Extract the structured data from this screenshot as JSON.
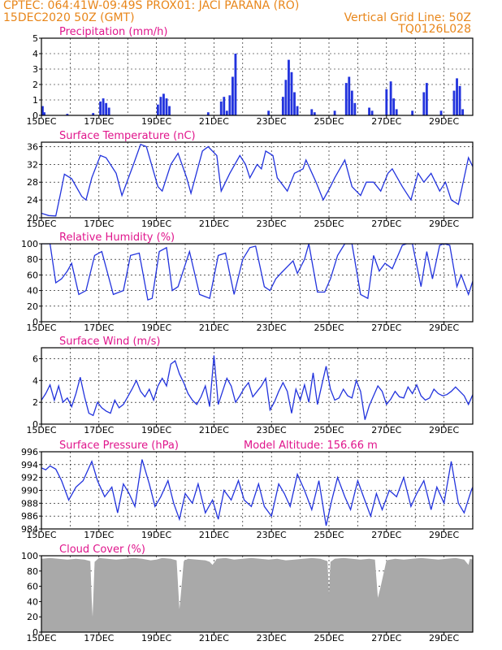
{
  "header": {
    "line1_left": "CPTEC:   064:41W-09:49S   PROX01: JACI PARANA (RO)",
    "line2_left": "15DEC2020 50Z (GMT)",
    "line2_right": "Vertical Grid Line: 50Z",
    "line3_right": "TQ0126L028"
  },
  "colors": {
    "header": "#e8861a",
    "title": "#e0158c",
    "series": "#2233dd",
    "cloud": "#a9a9a9",
    "grid": "#000000"
  },
  "chart_data": [
    {
      "id": "precip",
      "type": "bar",
      "title": "Precipitation (mm/h)",
      "ylim": [
        0,
        5
      ],
      "yticks": [
        0,
        1,
        2,
        3,
        4,
        5
      ],
      "xlim": [
        15,
        30
      ],
      "xticks": [
        "15DEC",
        "17DEC",
        "19DEC",
        "21DEC",
        "23DEC",
        "25DEC",
        "27DEC",
        "29DEC"
      ],
      "x": [
        15.04,
        15.1,
        15.9,
        16.8,
        17.05,
        17.15,
        17.25,
        17.35,
        19.05,
        19.15,
        19.25,
        19.35,
        19.45,
        20.8,
        21.25,
        21.35,
        21.45,
        21.55,
        21.65,
        21.75,
        22.9,
        23.4,
        23.5,
        23.6,
        23.7,
        23.8,
        23.9,
        24.4,
        24.5,
        25.2,
        25.6,
        25.7,
        25.8,
        25.9,
        26.4,
        26.5,
        27.0,
        27.15,
        27.25,
        27.35,
        27.9,
        28.3,
        28.4,
        28.9,
        29.35,
        29.45,
        29.55,
        29.65
      ],
      "values": [
        0.6,
        0.2,
        0.1,
        0.15,
        0.9,
        1.1,
        0.8,
        0.5,
        0.7,
        1.2,
        1.4,
        1.1,
        0.6,
        0.2,
        0.9,
        1.2,
        0.3,
        1.3,
        2.5,
        4.0,
        0.3,
        1.2,
        2.3,
        3.6,
        2.8,
        1.5,
        0.6,
        0.4,
        0.2,
        0.3,
        2.1,
        2.5,
        1.6,
        0.8,
        0.5,
        0.3,
        1.7,
        2.2,
        1.1,
        0.4,
        0.3,
        1.5,
        2.1,
        0.3,
        1.6,
        2.4,
        1.9,
        0.4
      ]
    },
    {
      "id": "temp",
      "type": "line",
      "title": "Surface Temperature (nC)",
      "ylim": [
        20,
        37
      ],
      "yticks": [
        20,
        24,
        28,
        32,
        36
      ],
      "xlim": [
        15,
        30
      ],
      "xticks": [
        "15DEC",
        "17DEC",
        "19DEC",
        "21DEC",
        "23DEC",
        "25DEC",
        "27DEC",
        "29DEC"
      ],
      "x": [
        15,
        15.25,
        15.5,
        15.65,
        15.8,
        16.05,
        16.4,
        16.55,
        16.75,
        17.05,
        17.25,
        17.6,
        17.8,
        18.2,
        18.45,
        18.65,
        19.05,
        19.2,
        19.5,
        19.75,
        20.05,
        20.2,
        20.6,
        20.8,
        21.1,
        21.25,
        21.55,
        21.9,
        22.1,
        22.25,
        22.5,
        22.65,
        22.8,
        23.05,
        23.2,
        23.55,
        23.8,
        24.1,
        24.2,
        24.55,
        24.8,
        25.05,
        25.2,
        25.55,
        25.8,
        26.1,
        26.3,
        26.55,
        26.8,
        27.05,
        27.2,
        27.55,
        27.85,
        28.1,
        28.3,
        28.55,
        28.85,
        29.05,
        29.25,
        29.5,
        29.85,
        30
      ],
      "values": [
        21,
        20.5,
        20.4,
        25,
        29.8,
        28.8,
        24.8,
        24,
        29,
        34,
        33.5,
        30,
        25,
        32,
        36.5,
        36,
        27,
        26,
        32,
        34.5,
        29,
        25.5,
        35,
        36,
        34,
        26,
        30,
        34,
        32,
        29,
        32,
        31,
        35,
        34,
        29,
        26,
        30,
        31,
        33,
        28,
        24,
        27,
        29,
        33,
        27,
        25,
        28,
        28,
        26,
        30,
        31,
        27,
        24,
        30,
        28,
        30,
        26,
        28,
        24,
        23,
        33.5,
        31.5
      ]
    },
    {
      "id": "rh",
      "type": "line",
      "title": "Relative Humidity (%)",
      "ylim": [
        0,
        100
      ],
      "yticks": [
        0,
        20,
        40,
        60,
        80,
        100
      ],
      "xlim": [
        15,
        30
      ],
      "xticks": [
        "15DEC",
        "17DEC",
        "19DEC",
        "21DEC",
        "23DEC",
        "25DEC",
        "27DEC",
        "29DEC"
      ],
      "x": [
        15,
        15.3,
        15.5,
        15.7,
        15.9,
        16.05,
        16.3,
        16.55,
        16.85,
        17.1,
        17.5,
        17.85,
        18.1,
        18.4,
        18.7,
        18.85,
        19.1,
        19.35,
        19.55,
        19.75,
        20.15,
        20.5,
        20.85,
        21.15,
        21.4,
        21.7,
        22.0,
        22.25,
        22.45,
        22.75,
        22.95,
        23.15,
        23.35,
        23.75,
        23.9,
        24.15,
        24.3,
        24.6,
        24.85,
        25.05,
        25.3,
        25.55,
        25.8,
        26.1,
        26.35,
        26.55,
        26.75,
        26.95,
        27.2,
        27.55,
        27.7,
        27.9,
        28.2,
        28.4,
        28.6,
        28.85,
        29.0,
        29.2,
        29.45,
        29.6,
        29.85,
        30
      ],
      "values": [
        100,
        100,
        50,
        55,
        65,
        75,
        35,
        40,
        85,
        90,
        35,
        40,
        85,
        88,
        28,
        30,
        90,
        95,
        40,
        45,
        90,
        35,
        30,
        85,
        88,
        35,
        80,
        95,
        97,
        45,
        40,
        55,
        63,
        78,
        62,
        80,
        100,
        38,
        38,
        55,
        85,
        100,
        100,
        35,
        30,
        85,
        65,
        75,
        68,
        98,
        100,
        100,
        45,
        90,
        55,
        98,
        100,
        98,
        45,
        60,
        35,
        52
      ]
    },
    {
      "id": "wind",
      "type": "line",
      "title": "Surface Wind (m/s)",
      "ylim": [
        0,
        7
      ],
      "yticks": [
        0,
        2,
        4,
        6
      ],
      "xlim": [
        15,
        30
      ],
      "xticks": [
        "15DEC",
        "17DEC",
        "19DEC",
        "21DEC",
        "23DEC",
        "25DEC",
        "27DEC",
        "29DEC"
      ],
      "x": [
        15,
        15.15,
        15.3,
        15.45,
        15.6,
        15.75,
        15.9,
        16.05,
        16.2,
        16.35,
        16.5,
        16.65,
        16.8,
        16.95,
        17.1,
        17.25,
        17.4,
        17.55,
        17.7,
        17.85,
        18.0,
        18.15,
        18.3,
        18.45,
        18.6,
        18.75,
        18.9,
        19.05,
        19.2,
        19.35,
        19.5,
        19.65,
        19.8,
        19.95,
        20.1,
        20.25,
        20.4,
        20.55,
        20.7,
        20.85,
        21.0,
        21.15,
        21.3,
        21.45,
        21.6,
        21.75,
        21.9,
        22.05,
        22.2,
        22.35,
        22.5,
        22.65,
        22.8,
        22.95,
        23.1,
        23.25,
        23.4,
        23.55,
        23.7,
        23.85,
        24.0,
        24.15,
        24.3,
        24.45,
        24.6,
        24.75,
        24.9,
        25.05,
        25.2,
        25.35,
        25.5,
        25.65,
        25.8,
        25.95,
        26.1,
        26.25,
        26.4,
        26.55,
        26.7,
        26.85,
        27.0,
        27.15,
        27.3,
        27.45,
        27.6,
        27.75,
        27.9,
        28.05,
        28.2,
        28.35,
        28.5,
        28.65,
        28.8,
        28.95,
        29.1,
        29.25,
        29.4,
        29.55,
        29.7,
        29.85,
        30
      ],
      "values": [
        2.2,
        2.8,
        3.6,
        2.2,
        3.5,
        2.0,
        2.4,
        1.6,
        2.8,
        4.3,
        2.5,
        1.0,
        0.8,
        2.0,
        1.5,
        1.2,
        1.0,
        2.2,
        1.5,
        1.8,
        2.5,
        3.2,
        4.0,
        3.0,
        2.5,
        3.2,
        2.2,
        3.5,
        4.2,
        3.5,
        5.5,
        5.8,
        4.6,
        3.8,
        2.8,
        2.2,
        1.8,
        2.5,
        3.5,
        1.6,
        6.3,
        1.8,
        3.0,
        4.2,
        3.5,
        2.0,
        2.6,
        3.3,
        3.8,
        2.5,
        3.0,
        3.5,
        4.2,
        1.3,
        2.0,
        3.0,
        3.8,
        3.0,
        1.0,
        3.2,
        2.2,
        3.6,
        2.0,
        4.7,
        1.8,
        3.6,
        5.3,
        3.2,
        2.2,
        2.4,
        3.2,
        2.6,
        2.4,
        4.0,
        3.0,
        0.4,
        1.7,
        2.6,
        3.5,
        3.0,
        1.8,
        2.3,
        3.0,
        2.5,
        2.4,
        3.4,
        2.8,
        3.6,
        2.6,
        2.2,
        2.4,
        3.2,
        2.8,
        2.6,
        2.7,
        3.0,
        3.4,
        3.0,
        2.6,
        1.8,
        2.7
      ]
    },
    {
      "id": "pres",
      "type": "line",
      "title": "Surface Pressure (hPa)",
      "annotation": "Model Altitude: 156.66 m",
      "ylim": [
        984,
        996
      ],
      "yticks": [
        984,
        986,
        988,
        990,
        992,
        994,
        996
      ],
      "xlim": [
        15,
        30
      ],
      "xticks": [
        "15DEC",
        "17DEC",
        "19DEC",
        "21DEC",
        "23DEC",
        "25DEC",
        "27DEC",
        "29DEC"
      ],
      "x": [
        15,
        15.15,
        15.3,
        15.5,
        15.7,
        15.95,
        16.2,
        16.45,
        16.75,
        16.95,
        17.2,
        17.45,
        17.65,
        17.85,
        18.05,
        18.25,
        18.5,
        18.75,
        18.95,
        19.15,
        19.4,
        19.6,
        19.8,
        20.0,
        20.25,
        20.45,
        20.7,
        20.95,
        21.15,
        21.35,
        21.6,
        21.85,
        22.05,
        22.3,
        22.55,
        22.75,
        23.0,
        23.25,
        23.45,
        23.65,
        23.9,
        24.15,
        24.4,
        24.65,
        24.9,
        25.1,
        25.3,
        25.55,
        25.75,
        26.0,
        26.2,
        26.45,
        26.65,
        26.85,
        27.1,
        27.35,
        27.6,
        27.85,
        28.05,
        28.3,
        28.55,
        28.75,
        29.0,
        29.25,
        29.5,
        29.7,
        29.95,
        30
      ],
      "values": [
        993.5,
        993.2,
        993.8,
        993.3,
        991.5,
        988.5,
        990.5,
        991.5,
        994.5,
        991.5,
        989,
        990.5,
        986.5,
        991,
        989.5,
        987.5,
        994.8,
        991,
        987.5,
        989,
        991.5,
        988,
        985.5,
        989.5,
        988,
        991,
        986.5,
        988.5,
        985.5,
        990,
        988.5,
        991.5,
        988.5,
        987.5,
        991,
        987.5,
        986,
        991,
        989.5,
        987.5,
        992.5,
        990,
        987,
        991.5,
        984.5,
        988.5,
        992,
        989,
        987,
        991.5,
        989,
        986,
        989.5,
        987,
        990,
        989,
        992,
        987.5,
        989.5,
        991.5,
        987,
        990.5,
        988,
        994.5,
        988,
        986.5,
        990,
        990.5
      ]
    },
    {
      "id": "cloud",
      "type": "area",
      "title": "Cloud Cover (%)",
      "ylim": [
        0,
        100
      ],
      "yticks": [
        0,
        20,
        40,
        60,
        80,
        100
      ],
      "xlim": [
        15,
        30
      ],
      "xticks": [
        "15DEC",
        "17DEC",
        "19DEC",
        "21DEC",
        "23DEC",
        "25DEC",
        "27DEC",
        "29DEC"
      ],
      "x": [
        15,
        15.3,
        15.6,
        15.9,
        16.2,
        16.5,
        16.7,
        16.75,
        16.78,
        16.85,
        17.0,
        17.3,
        17.6,
        17.9,
        18.2,
        18.5,
        18.8,
        19.0,
        19.2,
        19.5,
        19.7,
        19.8,
        19.85,
        19.95,
        20.1,
        20.4,
        20.7,
        20.85,
        20.95,
        21.1,
        21.4,
        21.7,
        22.0,
        22.3,
        22.6,
        22.9,
        23.2,
        23.5,
        23.8,
        24.1,
        24.4,
        24.7,
        24.95,
        25.0,
        25.05,
        25.2,
        25.5,
        25.8,
        26.1,
        26.4,
        26.6,
        26.7,
        26.8,
        27.0,
        27.3,
        27.6,
        27.9,
        28.2,
        28.5,
        28.8,
        29.1,
        29.4,
        29.7,
        29.85,
        29.9,
        30
      ],
      "values": [
        96,
        97,
        96,
        95,
        96,
        95,
        93,
        40,
        20,
        92,
        97,
        96,
        95,
        96,
        97,
        96,
        94,
        95,
        97,
        96,
        94,
        30,
        50,
        93,
        96,
        95,
        94,
        92,
        88,
        96,
        97,
        95,
        96,
        97,
        96,
        95,
        96,
        94,
        95,
        96,
        97,
        96,
        93,
        50,
        92,
        96,
        97,
        96,
        95,
        96,
        95,
        45,
        60,
        94,
        96,
        95,
        96,
        97,
        96,
        95,
        96,
        97,
        95,
        88,
        96,
        95
      ]
    }
  ]
}
